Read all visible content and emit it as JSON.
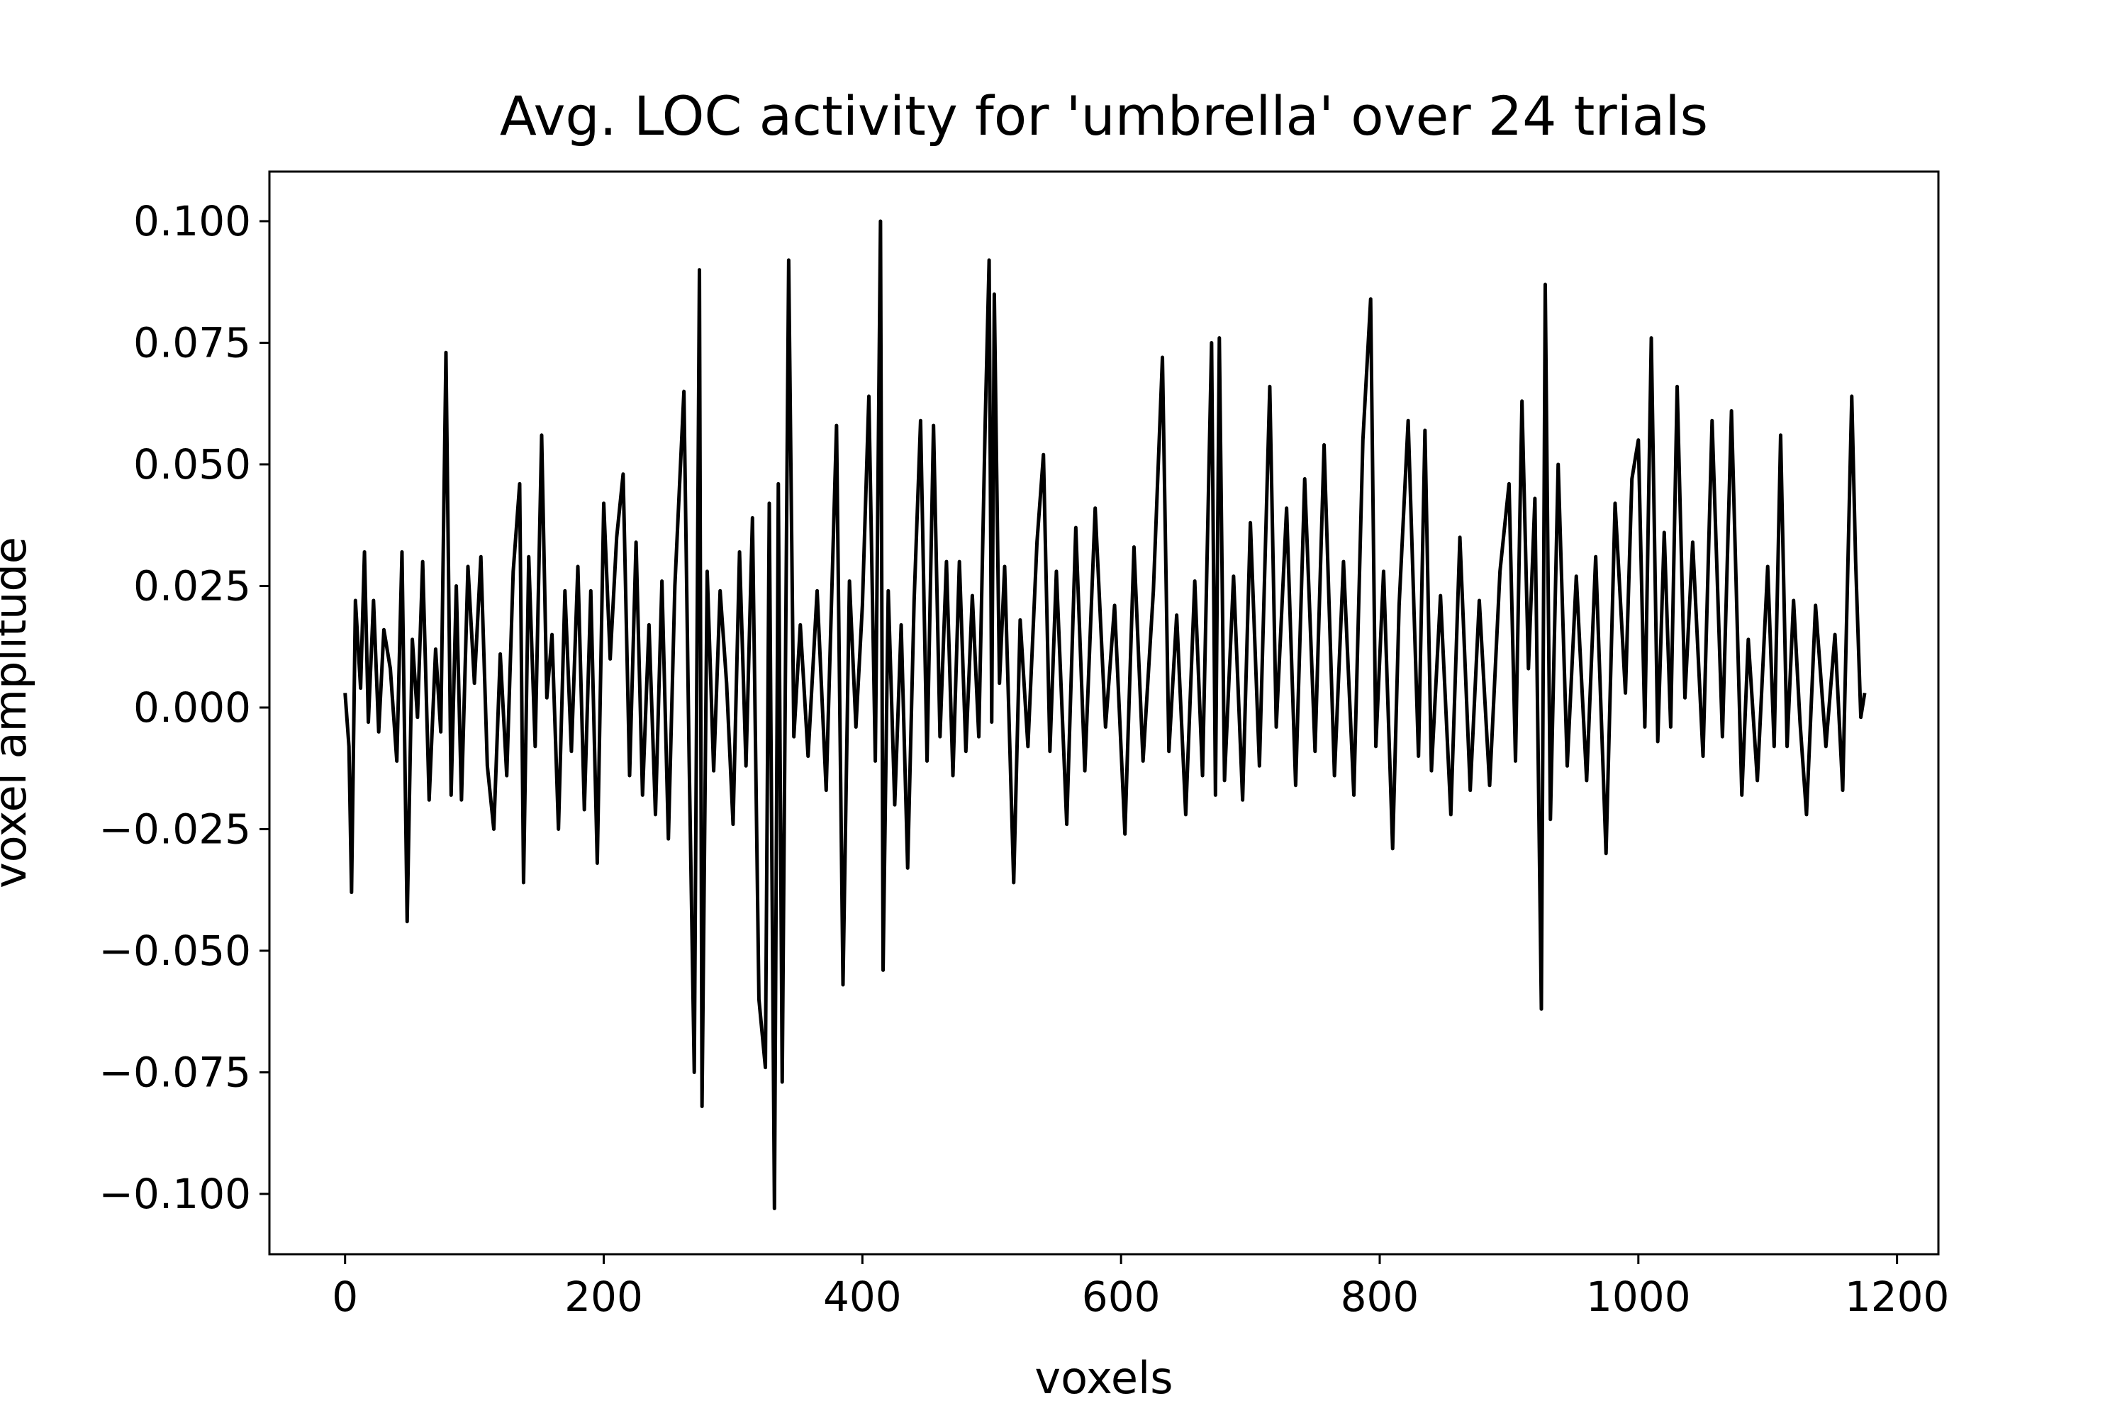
{
  "chart_data": {
    "type": "line",
    "title": "Avg. LOC activity for 'umbrella' over 24 trials",
    "xlabel": "voxels",
    "ylabel": "voxel amplitude",
    "color": "#000000",
    "xlim": [
      -58.5,
      1232
    ],
    "ylim": [
      -0.1124,
      0.1102
    ],
    "xticks": [
      0,
      200,
      400,
      600,
      800,
      1000,
      1200
    ],
    "yticks": [
      {
        "value": 0.1,
        "label": "0.100"
      },
      {
        "value": 0.075,
        "label": "0.075"
      },
      {
        "value": 0.05,
        "label": "0.050"
      },
      {
        "value": 0.025,
        "label": "0.025"
      },
      {
        "value": 0,
        "label": "0.000"
      },
      {
        "value": -0.025,
        "label": "−0.025"
      },
      {
        "value": -0.05,
        "label": "−0.050"
      },
      {
        "value": -0.075,
        "label": "−0.075"
      },
      {
        "value": -0.1,
        "label": "−0.100"
      }
    ],
    "x": [
      0,
      3,
      5,
      8,
      12,
      15,
      18,
      22,
      26,
      30,
      35,
      40,
      44,
      48,
      52,
      56,
      60,
      65,
      70,
      74,
      78,
      82,
      86,
      90,
      95,
      100,
      105,
      110,
      115,
      120,
      125,
      130,
      135,
      138,
      142,
      147,
      152,
      156,
      160,
      165,
      170,
      175,
      180,
      185,
      190,
      195,
      200,
      205,
      210,
      215,
      220,
      225,
      230,
      235,
      240,
      245,
      250,
      255,
      262,
      266,
      270,
      274,
      276,
      280,
      285,
      290,
      295,
      300,
      305,
      310,
      315,
      320,
      325,
      328,
      332,
      335,
      338,
      343,
      347,
      352,
      358,
      365,
      372,
      380,
      385,
      390,
      395,
      400,
      405,
      410,
      414,
      416,
      420,
      425,
      430,
      435,
      440,
      445,
      450,
      455,
      460,
      465,
      470,
      475,
      480,
      485,
      490,
      495,
      498,
      500,
      502,
      506,
      510,
      517,
      522,
      528,
      535,
      540,
      545,
      550,
      558,
      565,
      572,
      580,
      588,
      595,
      603,
      610,
      617,
      625,
      632,
      637,
      643,
      650,
      657,
      663,
      670,
      673,
      676,
      680,
      687,
      694,
      700,
      707,
      715,
      720,
      728,
      735,
      742,
      750,
      757,
      765,
      772,
      780,
      787,
      793,
      797,
      803,
      810,
      815,
      822,
      830,
      835,
      840,
      847,
      855,
      862,
      870,
      877,
      885,
      893,
      900,
      905,
      910,
      915,
      920,
      925,
      928,
      932,
      938,
      945,
      952,
      960,
      967,
      975,
      982,
      990,
      995,
      1000,
      1005,
      1010,
      1015,
      1020,
      1025,
      1030,
      1036,
      1042,
      1050,
      1057,
      1065,
      1072,
      1080,
      1085,
      1092,
      1100,
      1105,
      1110,
      1115,
      1120,
      1125,
      1130,
      1137,
      1145,
      1152,
      1158,
      1165,
      1168,
      1172,
      1175
    ],
    "values": [
      0.003,
      -0.008,
      -0.038,
      0.022,
      0.004,
      0.032,
      -0.003,
      0.022,
      -0.005,
      0.016,
      0.008,
      -0.011,
      0.032,
      -0.044,
      0.014,
      -0.002,
      0.03,
      -0.019,
      0.012,
      -0.005,
      0.073,
      -0.018,
      0.025,
      -0.019,
      0.029,
      0.005,
      0.031,
      -0.012,
      -0.025,
      0.011,
      -0.014,
      0.028,
      0.046,
      -0.036,
      0.031,
      -0.008,
      0.056,
      0.002,
      0.015,
      -0.025,
      0.024,
      -0.009,
      0.029,
      -0.021,
      0.024,
      -0.032,
      0.042,
      0.01,
      0.035,
      0.048,
      -0.014,
      0.034,
      -0.018,
      0.017,
      -0.022,
      0.026,
      -0.027,
      0.025,
      0.065,
      -0.01,
      -0.075,
      0.09,
      -0.082,
      0.028,
      -0.013,
      0.024,
      0.005,
      -0.024,
      0.032,
      -0.012,
      0.039,
      -0.06,
      -0.074,
      0.042,
      -0.103,
      0.046,
      -0.077,
      0.092,
      -0.006,
      0.017,
      -0.01,
      0.024,
      -0.017,
      0.058,
      -0.057,
      0.026,
      -0.004,
      0.021,
      0.064,
      -0.011,
      0.1,
      -0.054,
      0.024,
      -0.02,
      0.017,
      -0.033,
      0.022,
      0.059,
      -0.011,
      0.058,
      -0.006,
      0.03,
      -0.014,
      0.03,
      -0.009,
      0.023,
      -0.006,
      0.059,
      0.092,
      -0.003,
      0.085,
      0.005,
      0.029,
      -0.036,
      0.018,
      -0.008,
      0.034,
      0.052,
      -0.009,
      0.028,
      -0.024,
      0.037,
      -0.013,
      0.041,
      -0.004,
      0.021,
      -0.026,
      0.033,
      -0.011,
      0.024,
      0.072,
      -0.009,
      0.019,
      -0.022,
      0.026,
      -0.014,
      0.075,
      -0.018,
      0.076,
      -0.015,
      0.027,
      -0.019,
      0.038,
      -0.012,
      0.066,
      -0.004,
      0.041,
      -0.016,
      0.047,
      -0.009,
      0.054,
      -0.014,
      0.03,
      -0.018,
      0.055,
      0.084,
      -0.008,
      0.028,
      -0.029,
      0.021,
      0.059,
      -0.01,
      0.057,
      -0.013,
      0.023,
      -0.022,
      0.035,
      -0.017,
      0.022,
      -0.016,
      0.028,
      0.046,
      -0.011,
      0.063,
      0.008,
      0.043,
      -0.062,
      0.087,
      -0.023,
      0.05,
      -0.012,
      0.027,
      -0.015,
      0.031,
      -0.03,
      0.042,
      0.003,
      0.047,
      0.055,
      -0.004,
      0.076,
      -0.007,
      0.036,
      -0.004,
      0.066,
      0.002,
      0.034,
      -0.01,
      0.059,
      -0.006,
      0.061,
      -0.018,
      0.014,
      -0.015,
      0.029,
      -0.008,
      0.056,
      -0.008,
      0.022,
      -0.003,
      -0.022,
      0.021,
      -0.008,
      0.015,
      -0.017,
      0.064,
      0.03,
      -0.002,
      0.003
    ]
  }
}
